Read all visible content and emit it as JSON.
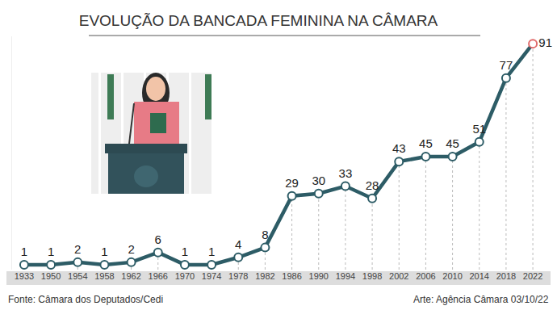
{
  "chart_data": {
    "type": "line",
    "title": "EVOLUÇÃO DA BANCADA FEMININA NA CÂMARA",
    "categories": [
      "1933",
      "1950",
      "1954",
      "1958",
      "1962",
      "1966",
      "1970",
      "1974",
      "1978",
      "1982",
      "1986",
      "1990",
      "1994",
      "1998",
      "2002",
      "2006",
      "2010",
      "2014",
      "2018",
      "2022"
    ],
    "values": [
      1,
      1,
      2,
      1,
      2,
      6,
      1,
      1,
      4,
      8,
      29,
      30,
      33,
      28,
      43,
      45,
      45,
      51,
      77,
      91
    ],
    "color": "#2d5c66",
    "marker": "circle",
    "data_labels": true,
    "tick_labels": "x",
    "ylim": [
      -1,
      94
    ],
    "grid": true,
    "source": "Fonte: Câmara dos Deputados/Cedi",
    "credit": "Arte: Agência Câmara 03/10/22"
  }
}
